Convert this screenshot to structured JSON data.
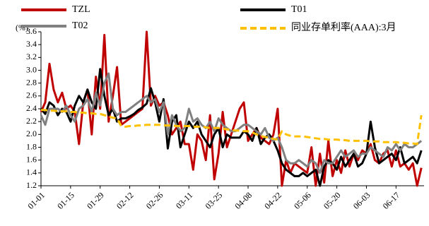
{
  "chart_data": {
    "type": "line",
    "y_label": "(%)",
    "categories": [
      "01-01",
      null,
      null,
      null,
      null,
      null,
      null,
      "01-15",
      null,
      null,
      null,
      null,
      null,
      null,
      "01-29",
      null,
      null,
      null,
      null,
      null,
      null,
      "02-12",
      null,
      null,
      null,
      null,
      null,
      null,
      "02-26",
      null,
      null,
      null,
      null,
      null,
      null,
      "03-11",
      null,
      null,
      null,
      null,
      null,
      null,
      "03-25",
      null,
      null,
      null,
      null,
      null,
      null,
      "04-08",
      null,
      null,
      null,
      null,
      null,
      null,
      "04-22",
      null,
      null,
      null,
      null,
      null,
      null,
      "05-06",
      null,
      null,
      null,
      null,
      null,
      null,
      "05-20",
      null,
      null,
      null,
      null,
      null,
      null,
      "06-03",
      null,
      null,
      null,
      null,
      null,
      null,
      "06-17",
      null,
      null,
      null,
      null,
      null,
      null
    ],
    "series": [
      {
        "name": "TZL",
        "color": "#c00000",
        "values": [
          2.35,
          2.5,
          3.1,
          2.7,
          2.5,
          2.65,
          2.4,
          2.45,
          2.35,
          1.85,
          2.5,
          2.7,
          2.0,
          2.9,
          2.4,
          3.55,
          2.2,
          2.6,
          3.05,
          2.15,
          2.2,
          2.25,
          2.3,
          2.35,
          2.4,
          3.6,
          2.45,
          2.6,
          2.45,
          2.5,
          2.3,
          2.0,
          2.1,
          2.2,
          1.85,
          1.85,
          1.45,
          2.0,
          1.9,
          1.6,
          2.3,
          1.3,
          1.7,
          2.35,
          1.8,
          2.0,
          2.2,
          2.4,
          2.5,
          1.9,
          2.0,
          2.1,
          1.95,
          1.9,
          1.85,
          2.0,
          2.4,
          1.2,
          1.6,
          1.4,
          1.55,
          1.5,
          1.45,
          1.4,
          1.8,
          1.2,
          1.7,
          1.25,
          1.9,
          1.35,
          1.6,
          1.4,
          1.75,
          1.5,
          1.7,
          1.6,
          1.75,
          1.7,
          1.85,
          1.6,
          1.55,
          1.7,
          1.75,
          1.5,
          1.75,
          1.5,
          1.55,
          1.45,
          1.55,
          1.2,
          1.48
        ]
      },
      {
        "name": "T01",
        "color": "#000000",
        "values": [
          2.4,
          2.32,
          2.5,
          2.45,
          2.3,
          2.4,
          2.35,
          2.2,
          2.45,
          2.6,
          2.5,
          2.7,
          2.5,
          2.4,
          3.02,
          2.6,
          2.3,
          2.4,
          2.2,
          2.25,
          2.25,
          2.28,
          2.32,
          2.38,
          2.42,
          2.48,
          2.72,
          2.5,
          2.2,
          2.55,
          1.78,
          2.2,
          2.3,
          1.8,
          2.0,
          2.2,
          2.1,
          2.2,
          2.0,
          1.9,
          1.8,
          2.0,
          2.1,
          1.8,
          2.0,
          1.95,
          1.95,
          1.95,
          2.05,
          2.0,
          1.9,
          2.1,
          1.85,
          1.95,
          2.0,
          1.9,
          1.75,
          1.55,
          1.45,
          1.4,
          1.35,
          1.35,
          1.4,
          1.35,
          1.4,
          1.45,
          1.2,
          1.5,
          1.6,
          1.55,
          1.45,
          1.65,
          1.5,
          1.6,
          1.7,
          1.5,
          1.55,
          1.7,
          2.2,
          1.8,
          1.55,
          1.6,
          1.65,
          1.7,
          1.6,
          1.8,
          1.55,
          1.6,
          1.65,
          1.55,
          1.75
        ]
      },
      {
        "name": "T02",
        "color": "#808080",
        "values": [
          2.3,
          2.15,
          2.4,
          2.4,
          2.4,
          2.35,
          2.45,
          2.3,
          2.2,
          2.4,
          2.45,
          2.55,
          2.35,
          2.65,
          2.45,
          2.8,
          2.95,
          2.4,
          2.3,
          2.35,
          2.35,
          2.4,
          2.45,
          2.5,
          2.55,
          2.6,
          2.5,
          2.55,
          2.35,
          2.5,
          2.0,
          2.3,
          2.15,
          2.05,
          2.1,
          2.4,
          2.2,
          2.25,
          2.15,
          2.1,
          2.2,
          2.05,
          2.25,
          2.15,
          2.1,
          2.05,
          2.05,
          2.1,
          2.15,
          2.15,
          2.1,
          2.05,
          2.0,
          2.1,
          1.95,
          1.9,
          1.95,
          1.8,
          1.6,
          1.55,
          1.55,
          1.6,
          1.55,
          1.5,
          1.6,
          1.55,
          1.4,
          1.6,
          1.55,
          1.55,
          1.65,
          1.75,
          1.65,
          1.7,
          1.75,
          1.65,
          1.7,
          1.7,
          1.8,
          1.75,
          1.7,
          1.65,
          1.8,
          1.75,
          1.85,
          1.75,
          1.85,
          1.8,
          1.8,
          1.85,
          1.9
        ]
      },
      {
        "name": "同业存单利率(AAA):3月",
        "color": "#ffc000",
        "dashed": true,
        "values": [
          2.38,
          2.38,
          2.37,
          2.37,
          2.36,
          2.36,
          2.36,
          2.35,
          2.35,
          2.34,
          2.34,
          2.33,
          2.33,
          2.32,
          2.32,
          2.3,
          2.28,
          2.26,
          2.25,
          2.13,
          2.12,
          2.13,
          2.13,
          2.14,
          2.14,
          2.15,
          2.15,
          2.15,
          2.15,
          2.14,
          2.14,
          2.14,
          2.13,
          2.13,
          2.13,
          2.13,
          2.12,
          2.12,
          2.12,
          2.11,
          2.1,
          2.1,
          2.1,
          2.09,
          2.08,
          2.07,
          2.06,
          2.06,
          2.05,
          2.05,
          2.03,
          2.0,
          1.98,
          1.96,
          1.95,
          1.93,
          1.92,
          2.05,
          2.0,
          1.98,
          1.97,
          1.97,
          1.97,
          1.96,
          1.95,
          1.94,
          1.93,
          1.93,
          1.92,
          1.92,
          1.92,
          1.91,
          1.91,
          1.9,
          1.9,
          1.9,
          1.9,
          1.9,
          1.89,
          1.89,
          1.89,
          1.88,
          1.88,
          1.88,
          1.88,
          1.87,
          1.87,
          1.86,
          1.86,
          1.85,
          2.3
        ]
      }
    ],
    "ylim": [
      1.2,
      3.6
    ],
    "yticks": [
      1.2,
      1.4,
      1.6,
      1.8,
      {
        "value": 2,
        "label": "2.0"
      },
      2.2,
      2.4,
      2.6,
      2.8,
      {
        "value": 3,
        "label": "3.0"
      },
      3.2,
      3.4,
      3.6
    ],
    "grid": false
  }
}
